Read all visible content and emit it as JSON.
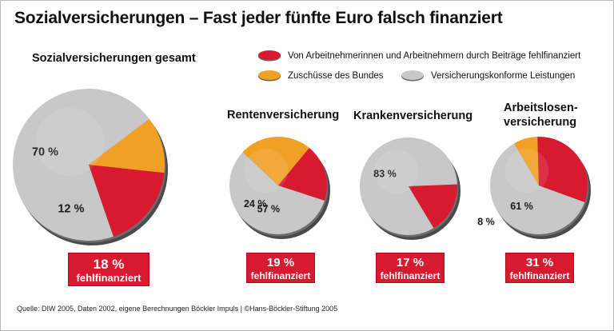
{
  "title": "Sozialversicherungen – Fast jeder fünfte Euro falsch finanziert",
  "legend": {
    "red": "Von Arbeitnehmerinnen und Arbeitnehmern durch Beiträge fehlfinanziert",
    "orange": "Zuschüsse des Bundes",
    "grey": "Versicherungskonforme Leistungen"
  },
  "colors": {
    "red": "#d71a30",
    "orange": "#f0a024",
    "grey": "#c8c8c8"
  },
  "source": "Quelle: DIW 2005, Daten 2002, eigene Berechnungen Böckler Impuls | ©Hans-Böckler-Stiftung 2005",
  "chart_data": [
    {
      "type": "pie",
      "title": "Sozialversicherungen gesamt",
      "categories": [
        "Versicherungskonforme Leistungen",
        "Zuschüsse des Bundes",
        "Von Arbeitnehmerinnen und Arbeitnehmern durch Beiträge fehlfinanziert"
      ],
      "values": [
        70,
        12,
        18
      ],
      "labels": [
        "70 %",
        "12 %",
        ""
      ],
      "badge": {
        "value": "18 %",
        "text": "fehlfinanziert"
      }
    },
    {
      "type": "pie",
      "title": "Rentenversicherung",
      "categories": [
        "Versicherungskonforme Leistungen",
        "Zuschüsse des Bundes",
        "Von Arbeitnehmerinnen und Arbeitnehmern durch Beiträge fehlfinanziert"
      ],
      "values": [
        57,
        24,
        19
      ],
      "labels": [
        "57 %",
        "24 %",
        ""
      ],
      "badge": {
        "value": "19 %",
        "text": "fehlfinanziert"
      }
    },
    {
      "type": "pie",
      "title": "Krankenversicherung",
      "categories": [
        "Versicherungskonforme Leistungen",
        "Von Arbeitnehmerinnen und Arbeitnehmern durch Beiträge fehlfinanziert"
      ],
      "values": [
        83,
        17
      ],
      "labels": [
        "83 %",
        ""
      ],
      "badge": {
        "value": "17 %",
        "text": "fehlfinanziert"
      }
    },
    {
      "type": "pie",
      "title_lines": [
        "Arbeitslosen-",
        "versicherung"
      ],
      "categories": [
        "Versicherungskonforme Leistungen",
        "Zuschüsse des Bundes",
        "Von Arbeitnehmerinnen und Arbeitnehmern durch Beiträge fehlfinanziert"
      ],
      "values": [
        61,
        8,
        31
      ],
      "labels": [
        "61 %",
        "8 %",
        ""
      ],
      "badge": {
        "value": "31 %",
        "text": "fehlfinanziert"
      }
    }
  ]
}
